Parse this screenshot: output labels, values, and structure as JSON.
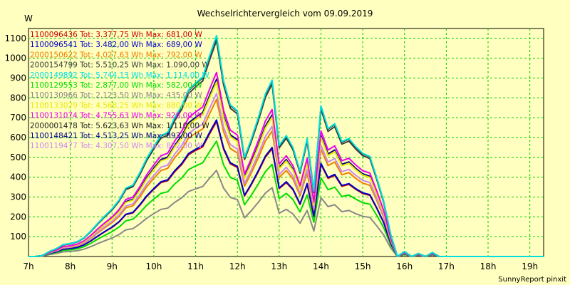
{
  "chart_data": {
    "type": "line",
    "title": "Wechselrichtervergleich vom 09.09.2019",
    "ylabel": "W",
    "xlabel": "",
    "footer": "SunnyReport pinxit",
    "ylim": [
      0,
      1150
    ],
    "xlim": [
      7,
      19.33
    ],
    "yticks": [
      100,
      200,
      300,
      400,
      500,
      600,
      700,
      800,
      900,
      1000,
      1100
    ],
    "xticks": [
      {
        "v": 7,
        "label": "7h"
      },
      {
        "v": 8,
        "label": "8h"
      },
      {
        "v": 9,
        "label": "9h"
      },
      {
        "v": 10,
        "label": "10h"
      },
      {
        "v": 11,
        "label": "11h"
      },
      {
        "v": 12,
        "label": "12h"
      },
      {
        "v": 13,
        "label": "13h"
      },
      {
        "v": 14,
        "label": "14h"
      },
      {
        "v": 15,
        "label": "15h"
      },
      {
        "v": 16,
        "label": "16h"
      },
      {
        "v": 17,
        "label": "17h"
      },
      {
        "v": 18,
        "label": "18h"
      },
      {
        "v": 19,
        "label": "19h"
      }
    ],
    "grid": true,
    "legend_position": "top-left",
    "x": [
      7.0,
      7.17,
      7.33,
      7.5,
      7.67,
      7.83,
      8.0,
      8.17,
      8.33,
      8.5,
      8.67,
      8.83,
      9.0,
      9.17,
      9.33,
      9.5,
      9.67,
      9.83,
      10.0,
      10.17,
      10.33,
      10.5,
      10.67,
      10.83,
      11.0,
      11.17,
      11.33,
      11.5,
      11.67,
      11.83,
      12.0,
      12.17,
      12.33,
      12.5,
      12.67,
      12.83,
      13.0,
      13.17,
      13.33,
      13.5,
      13.67,
      13.83,
      14.0,
      14.17,
      14.33,
      14.5,
      14.67,
      14.83,
      15.0,
      15.17,
      15.33,
      15.5,
      15.67,
      15.83,
      16.0,
      16.17,
      16.33,
      16.5,
      16.67,
      16.83,
      17.0,
      17.17,
      17.33,
      17.5,
      17.67,
      17.83,
      18.0,
      18.17,
      18.33,
      18.5,
      18.67,
      18.83,
      19.0,
      19.17,
      19.33
    ],
    "series": [
      {
        "name": "1100096436 Tot: 3.377,75 Wh Max: 681,00 W",
        "color": "#cc0000",
        "factor": 0.611
      },
      {
        "name": "1100096541 Tot: 3.482,00 Wh Max: 689,00 W",
        "color": "#0000cc",
        "factor": 0.618
      },
      {
        "name": "2000150622 Tot: 4.027,63 Wh Max: 792,00 W",
        "color": "#f08000",
        "factor": 0.711
      },
      {
        "name": "2000154799 Tot: 5.510,25 Wh Max: 1.090,00 W",
        "color": "#404040",
        "factor": 0.978
      },
      {
        "name": "2000149892 Tot: 5.744,13 Wh Max: 1.114,00 W",
        "color": "#00e0e0",
        "factor": 1.0
      },
      {
        "name": "1100129553 Tot: 2.877,00 Wh Max: 582,00 W",
        "color": "#00dd00",
        "factor": 0.522
      },
      {
        "name": "1100130966 Tot: 2.123,50 Wh Max: 435,00 W",
        "color": "#888888",
        "factor": 0.39
      },
      {
        "name": "1100133029 Tot: 4.568,25 Wh Max: 880,00 W",
        "color": "#e8e800",
        "factor": 0.79
      },
      {
        "name": "1100131074 Tot: 4.755,63 Wh Max: 928,00 W",
        "color": "#ee00ee",
        "factor": 0.833
      },
      {
        "name": "2000001478 Tot: 5.623,63 Wh Max: 1.110,00 W",
        "color": "#202020",
        "factor": 0.996
      },
      {
        "name": "1100148421 Tot: 4.513,25 Wh Max: 893,00 W",
        "color": "#000088",
        "factor": 0.802
      },
      {
        "name": "1100119477 Tot: 4.307,50 Wh Max: 822,00 W",
        "color": "#cc88ee",
        "factor": 0.738
      }
    ],
    "base_profile": [
      0,
      0,
      5,
      25,
      40,
      60,
      65,
      75,
      95,
      130,
      170,
      205,
      240,
      285,
      345,
      360,
      425,
      495,
      555,
      610,
      625,
      700,
      760,
      840,
      875,
      905,
      1010,
      1114,
      885,
      765,
      735,
      500,
      590,
      700,
      820,
      890,
      560,
      610,
      550,
      430,
      595,
      330,
      760,
      645,
      670,
      580,
      595,
      555,
      520,
      505,
      400,
      280,
      110,
      0,
      25,
      0,
      15,
      0,
      20,
      0,
      0,
      0,
      0,
      0,
      0,
      0,
      0,
      0,
      0,
      0,
      0,
      0,
      0,
      0,
      0
    ]
  }
}
